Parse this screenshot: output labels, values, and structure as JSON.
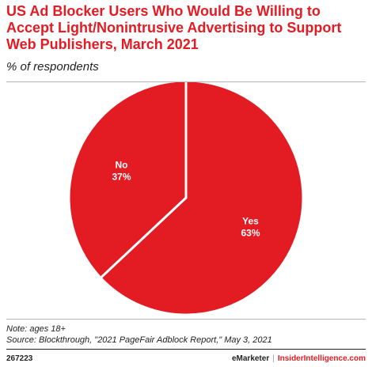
{
  "title": "US Ad Blocker Users Who Would Be Willing to Accept Light/Nonintrusive Advertising to Support Web Publishers, March 2021",
  "subtitle": "% of respondents",
  "note": "Note: ages 18+",
  "source": "Source: Blockthrough, \"2021 PageFair Adblock Report,\" May 3, 2021",
  "chart_id": "267223",
  "brand": {
    "emarketer": "eMarketer",
    "separator": "|",
    "insider": "InsiderIntelligence.com"
  },
  "colors": {
    "slice": "#e31b23",
    "border": "#ffffff",
    "label": "#ffffff"
  },
  "chart_data": {
    "type": "pie",
    "title": "US Ad Blocker Users Who Would Be Willing to Accept Light/Nonintrusive Advertising to Support Web Publishers, March 2021",
    "subtitle": "% of respondents",
    "slices": [
      {
        "label": "Yes",
        "value": 63,
        "value_label": "63%"
      },
      {
        "label": "No",
        "value": 37,
        "value_label": "37%"
      }
    ]
  }
}
